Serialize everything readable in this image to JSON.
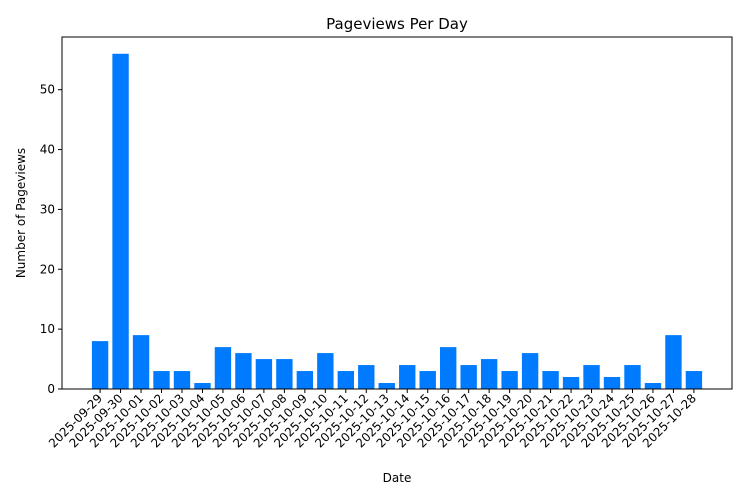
{
  "chart_data": {
    "type": "bar",
    "title": "Pageviews Per Day",
    "x_label": "Date",
    "y_label": "Number of Pageviews",
    "categories": [
      "2025-09-29",
      "2025-09-30",
      "2025-10-01",
      "2025-10-02",
      "2025-10-03",
      "2025-10-04",
      "2025-10-05",
      "2025-10-06",
      "2025-10-07",
      "2025-10-08",
      "2025-10-09",
      "2025-10-10",
      "2025-10-11",
      "2025-10-12",
      "2025-10-13",
      "2025-10-14",
      "2025-10-15",
      "2025-10-16",
      "2025-10-17",
      "2025-10-18",
      "2025-10-19",
      "2025-10-20",
      "2025-10-21",
      "2025-10-22",
      "2025-10-23",
      "2025-10-24",
      "2025-10-25",
      "2025-10-26",
      "2025-10-27",
      "2025-10-28"
    ],
    "values": [
      8,
      56,
      9,
      3,
      3,
      1,
      7,
      6,
      5,
      5,
      3,
      6,
      3,
      4,
      1,
      4,
      3,
      7,
      4,
      5,
      3,
      6,
      3,
      2,
      4,
      2,
      4,
      1,
      9,
      3
    ],
    "color": "#007bff",
    "ylim": [
      0,
      58.8
    ],
    "yticks": [
      0,
      10,
      20,
      30,
      40,
      50
    ],
    "grid": false
  }
}
